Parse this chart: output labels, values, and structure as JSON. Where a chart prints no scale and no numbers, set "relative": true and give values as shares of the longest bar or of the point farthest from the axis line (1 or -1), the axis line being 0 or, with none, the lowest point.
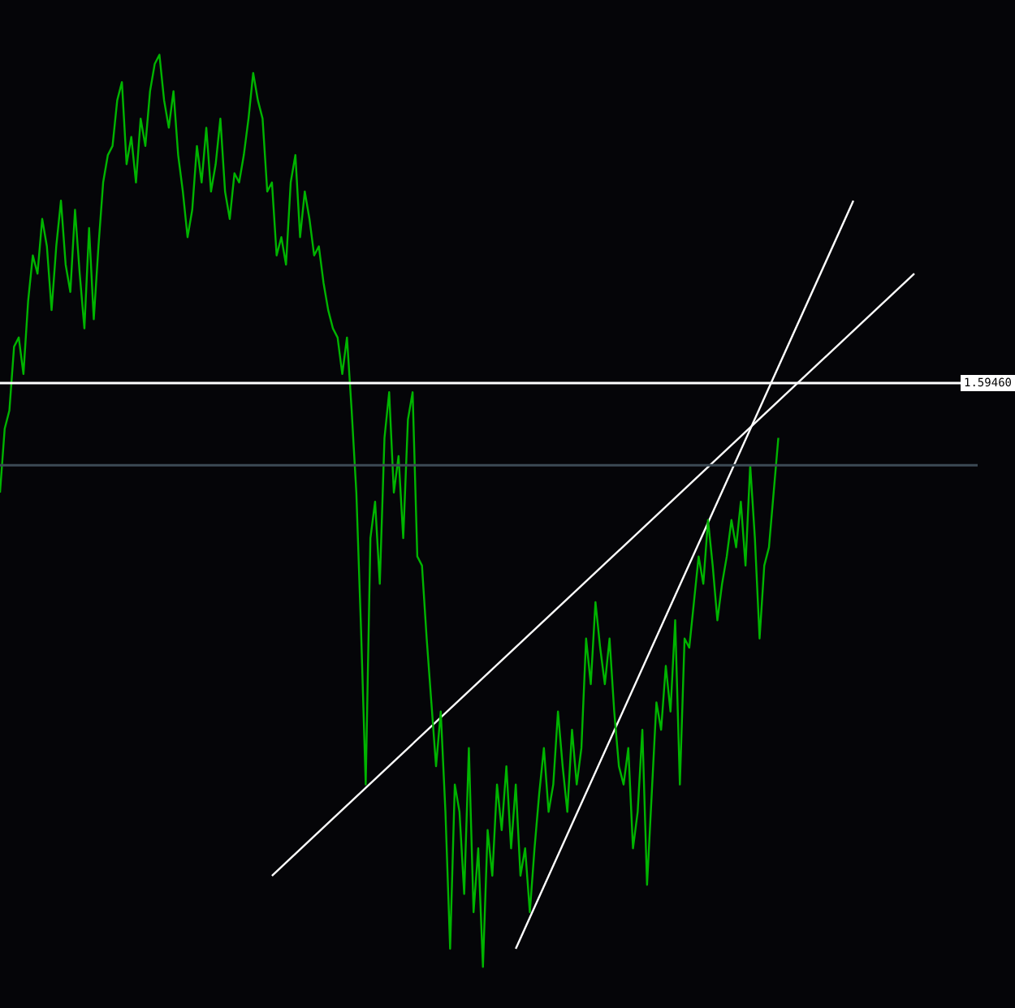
{
  "chart_data": {
    "type": "line",
    "relative": true,
    "legend": false,
    "marker": "none",
    "categories": [
      null,
      null,
      null,
      null,
      null,
      null,
      null,
      null,
      null,
      null,
      null,
      null,
      null,
      null,
      null,
      null,
      null,
      null,
      null,
      null,
      null,
      null,
      null,
      null,
      null,
      null,
      null,
      null,
      null,
      null,
      null,
      null,
      null,
      null,
      null,
      null,
      null,
      null,
      null,
      null,
      null,
      null,
      null,
      null,
      null,
      null,
      null,
      null,
      null,
      null,
      null,
      null,
      null,
      null,
      null,
      null,
      null,
      null,
      null,
      null,
      null,
      null,
      null,
      null,
      null,
      null,
      null,
      null,
      null,
      null,
      null,
      null,
      null,
      null,
      null,
      null,
      null,
      null,
      null,
      null,
      null,
      null,
      null,
      null,
      null,
      null,
      null,
      null,
      null,
      null,
      null,
      null,
      null,
      null,
      null,
      null,
      null,
      null,
      null,
      null,
      null,
      null,
      null,
      null,
      null,
      null,
      null,
      null,
      null,
      null,
      null,
      null,
      null,
      null,
      null,
      null,
      null,
      null,
      null,
      null,
      null,
      null,
      null,
      null,
      null,
      null,
      null,
      null,
      null,
      null,
      null,
      null,
      null,
      null,
      null,
      null,
      null,
      null,
      null,
      null,
      null,
      null,
      null,
      null,
      null,
      null,
      null,
      null,
      null,
      null,
      null,
      null,
      null,
      null,
      null,
      null,
      null,
      null,
      null,
      null,
      null,
      null,
      null,
      null,
      null,
      null,
      null,
      null,
      null,
      null,
      null,
      null,
      null,
      null,
      null,
      null,
      null,
      null,
      null,
      null,
      null,
      null,
      null,
      null,
      null,
      null,
      null,
      null,
      null,
      null,
      null,
      null,
      null,
      null,
      null,
      null
    ],
    "series": [
      {
        "color": "#00b400",
        "values": [
          0.52,
          0.59,
          0.61,
          0.68,
          0.69,
          0.65,
          0.73,
          0.78,
          0.76,
          0.82,
          0.79,
          0.72,
          0.79,
          0.84,
          0.77,
          0.74,
          0.83,
          0.76,
          0.7,
          0.81,
          0.71,
          0.79,
          0.86,
          0.89,
          0.9,
          0.95,
          0.97,
          0.88,
          0.91,
          0.86,
          0.93,
          0.9,
          0.96,
          0.99,
          1.0,
          0.95,
          0.92,
          0.96,
          0.89,
          0.85,
          0.8,
          0.83,
          0.9,
          0.86,
          0.92,
          0.85,
          0.88,
          0.93,
          0.85,
          0.82,
          0.87,
          0.86,
          0.89,
          0.93,
          0.98,
          0.95,
          0.93,
          0.85,
          0.86,
          0.78,
          0.8,
          0.77,
          0.86,
          0.89,
          0.8,
          0.85,
          0.82,
          0.78,
          0.79,
          0.75,
          0.72,
          0.7,
          0.69,
          0.65,
          0.69,
          0.61,
          0.52,
          0.37,
          0.2,
          0.47,
          0.51,
          0.42,
          0.58,
          0.63,
          0.52,
          0.56,
          0.47,
          0.6,
          0.63,
          0.45,
          0.44,
          0.36,
          0.29,
          0.22,
          0.28,
          0.17,
          0.02,
          0.2,
          0.17,
          0.08,
          0.24,
          0.06,
          0.13,
          0.0,
          0.15,
          0.1,
          0.2,
          0.15,
          0.22,
          0.13,
          0.2,
          0.1,
          0.13,
          0.06,
          0.13,
          0.19,
          0.24,
          0.17,
          0.2,
          0.28,
          0.22,
          0.17,
          0.26,
          0.2,
          0.24,
          0.36,
          0.31,
          0.4,
          0.35,
          0.31,
          0.36,
          0.28,
          0.22,
          0.2,
          0.24,
          0.13,
          0.17,
          0.26,
          0.09,
          0.19,
          0.29,
          0.26,
          0.33,
          0.28,
          0.38,
          0.2,
          0.36,
          0.35,
          0.4,
          0.45,
          0.42,
          0.49,
          0.44,
          0.38,
          0.42,
          0.45,
          0.49,
          0.46,
          0.51,
          0.44,
          0.55,
          0.47,
          0.36,
          0.44,
          0.46,
          0.52,
          0.58,
          null,
          null,
          null,
          null,
          null,
          null,
          null,
          null,
          null,
          null,
          null,
          null,
          null,
          null,
          null,
          null,
          null,
          null,
          null,
          null,
          null,
          null,
          null,
          null,
          null,
          null,
          null,
          null,
          null
        ]
      },
      {
        "type": "line",
        "color": "#ffffff",
        "values": [
          null,
          null,
          null,
          null,
          null,
          null,
          null,
          null,
          null,
          null,
          null,
          null,
          null,
          null,
          null,
          null,
          null,
          null,
          null,
          null,
          null,
          null,
          null,
          null,
          null,
          null,
          null,
          null,
          null,
          null,
          null,
          null,
          null,
          null,
          null,
          null,
          null,
          null,
          null,
          null,
          null,
          null,
          null,
          null,
          null,
          null,
          null,
          null,
          null,
          null,
          null,
          null,
          null,
          null,
          null,
          null,
          null,
          null,
          0.1,
          null,
          null,
          null,
          null,
          null,
          null,
          null,
          null,
          null,
          null,
          null,
          null,
          null,
          null,
          null,
          null,
          null,
          null,
          null,
          null,
          null,
          null,
          null,
          null,
          null,
          null,
          null,
          null,
          null,
          null,
          null,
          null,
          null,
          null,
          null,
          null,
          null,
          null,
          null,
          null,
          null,
          null,
          null,
          null,
          null,
          null,
          null,
          null,
          null,
          null,
          null,
          null,
          null,
          null,
          null,
          null,
          null,
          null,
          null,
          null,
          null,
          null,
          null,
          null,
          null,
          null,
          null,
          null,
          null,
          null,
          null,
          null,
          null,
          null,
          null,
          null,
          null,
          null,
          null,
          null,
          null,
          null,
          null,
          null,
          null,
          null,
          null,
          null,
          null,
          null,
          null,
          null,
          null,
          null,
          null,
          null,
          null,
          null,
          null,
          null,
          null,
          null,
          null,
          null,
          null,
          null,
          null,
          null,
          null,
          null,
          null,
          null,
          null,
          null,
          null,
          null,
          null,
          null,
          null,
          null,
          null,
          null,
          null,
          null,
          null,
          null,
          null,
          null,
          null,
          null,
          null,
          null,
          null,
          null,
          null,
          null,
          0.76
        ]
      },
      {
        "type": "line",
        "color": "#ffffff",
        "values": [
          null,
          null,
          null,
          null,
          null,
          null,
          null,
          null,
          null,
          null,
          null,
          null,
          null,
          null,
          null,
          null,
          null,
          null,
          null,
          null,
          null,
          null,
          null,
          null,
          null,
          null,
          null,
          null,
          null,
          null,
          null,
          null,
          null,
          null,
          null,
          null,
          null,
          null,
          null,
          null,
          null,
          null,
          null,
          null,
          null,
          null,
          null,
          null,
          null,
          null,
          null,
          null,
          null,
          null,
          null,
          null,
          null,
          null,
          null,
          null,
          null,
          null,
          null,
          null,
          null,
          null,
          null,
          null,
          null,
          null,
          null,
          null,
          null,
          null,
          null,
          null,
          null,
          null,
          null,
          null,
          null,
          null,
          null,
          null,
          null,
          null,
          null,
          null,
          null,
          null,
          null,
          null,
          null,
          null,
          null,
          null,
          null,
          null,
          null,
          null,
          null,
          null,
          null,
          null,
          null,
          null,
          null,
          null,
          null,
          null,
          0.02,
          null,
          null,
          null,
          null,
          null,
          null,
          null,
          null,
          null,
          null,
          null,
          null,
          null,
          null,
          null,
          null,
          null,
          null,
          null,
          null,
          null,
          null,
          null,
          null,
          null,
          null,
          null,
          null,
          null,
          null,
          null,
          null,
          null,
          null,
          null,
          null,
          null,
          null,
          null,
          null,
          null,
          null,
          null,
          null,
          null,
          null,
          null,
          null,
          null,
          null,
          null,
          null,
          null,
          null,
          null,
          null,
          null,
          null,
          null,
          null,
          null,
          null,
          null,
          null,
          null,
          null,
          null,
          null,
          null,
          null,
          null,
          0.84,
          null,
          null,
          null,
          null,
          null,
          null,
          null,
          null,
          null,
          null,
          null,
          null,
          null
        ]
      }
    ],
    "ref_lines": [
      {
        "axis": "y",
        "value": 0.64,
        "color": "#ffffff"
      },
      {
        "axis": "y",
        "value": 0.55,
        "color": "#3c4a54"
      }
    ],
    "annotations": [
      "1.59460"
    ]
  }
}
